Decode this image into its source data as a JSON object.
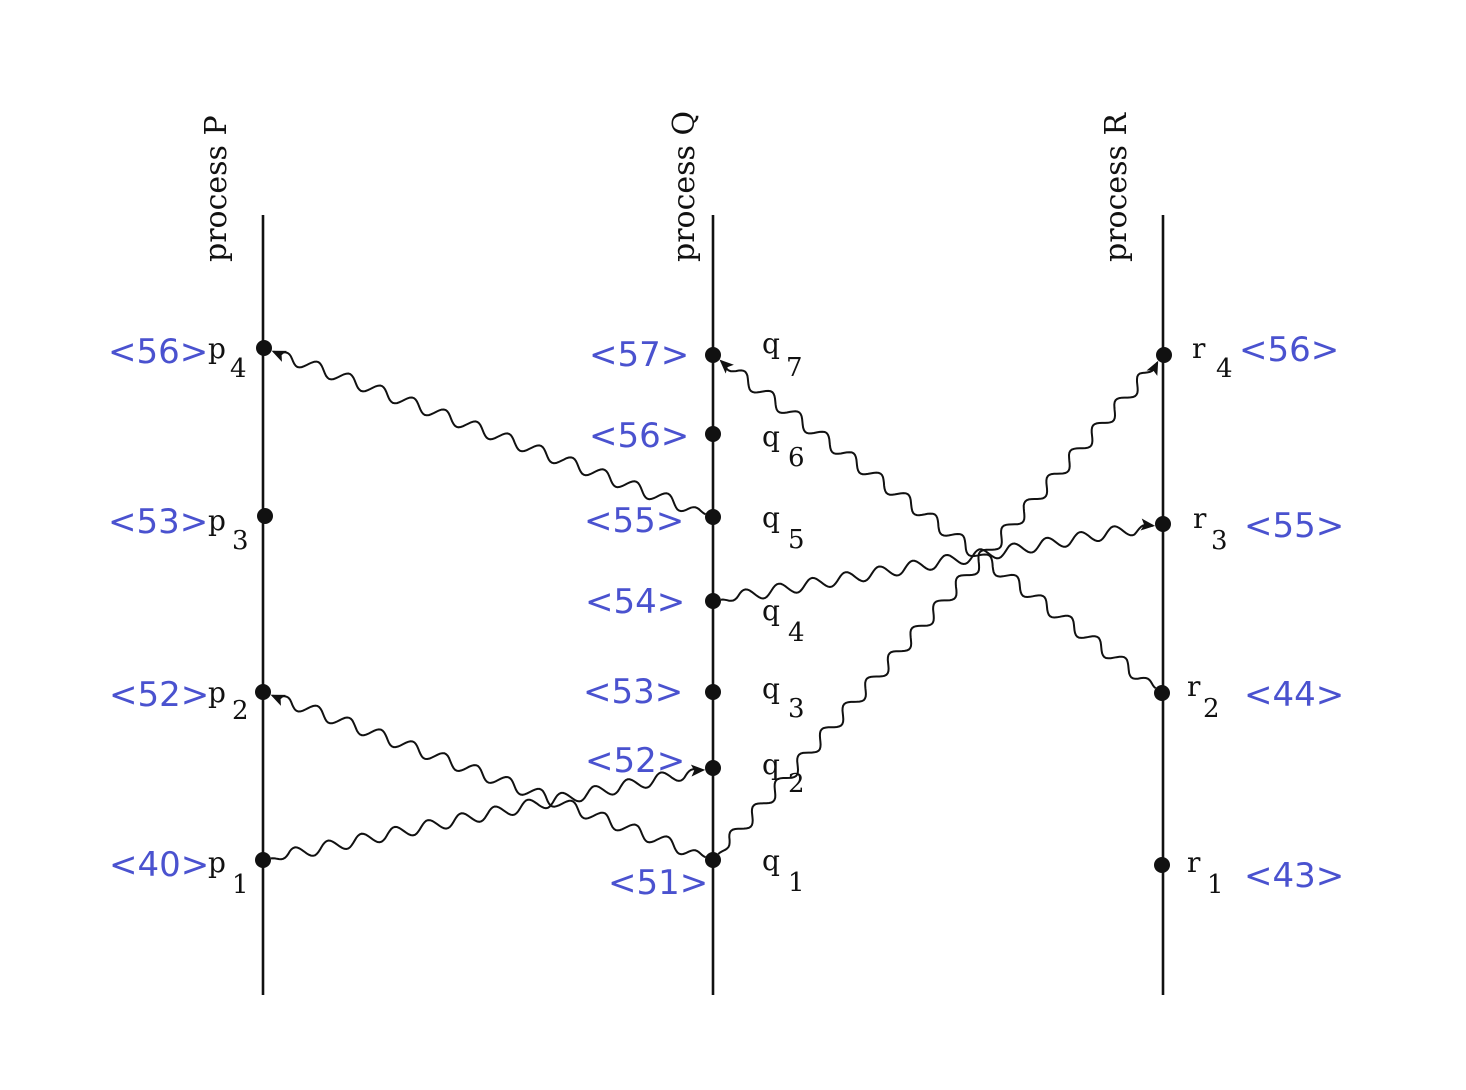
{
  "processes": [
    {
      "id": "P",
      "label": "process P"
    },
    {
      "id": "Q",
      "label": "process Q"
    },
    {
      "id": "R",
      "label": "process R"
    }
  ],
  "events": [
    {
      "id": "p1",
      "process": "P",
      "name": "p",
      "sub": "1",
      "timestamp": "<40>"
    },
    {
      "id": "p2",
      "process": "P",
      "name": "p",
      "sub": "2",
      "timestamp": "<52>"
    },
    {
      "id": "p3",
      "process": "P",
      "name": "p",
      "sub": "3",
      "timestamp": "<53>"
    },
    {
      "id": "p4",
      "process": "P",
      "name": "p",
      "sub": "4",
      "timestamp": "<56>"
    },
    {
      "id": "q1",
      "process": "Q",
      "name": "q",
      "sub": "1",
      "timestamp": "<51>"
    },
    {
      "id": "q2",
      "process": "Q",
      "name": "q",
      "sub": "2",
      "timestamp": "<52>"
    },
    {
      "id": "q3",
      "process": "Q",
      "name": "q",
      "sub": "3",
      "timestamp": "<53>"
    },
    {
      "id": "q4",
      "process": "Q",
      "name": "q",
      "sub": "4",
      "timestamp": "<54>"
    },
    {
      "id": "q5",
      "process": "Q",
      "name": "q",
      "sub": "5",
      "timestamp": "<55>"
    },
    {
      "id": "q6",
      "process": "Q",
      "name": "q",
      "sub": "6",
      "timestamp": "<56>"
    },
    {
      "id": "q7",
      "process": "Q",
      "name": "q",
      "sub": "7",
      "timestamp": "<57>"
    },
    {
      "id": "r1",
      "process": "R",
      "name": "r",
      "sub": "1",
      "timestamp": "<43>"
    },
    {
      "id": "r2",
      "process": "R",
      "name": "r",
      "sub": "2",
      "timestamp": "<44>"
    },
    {
      "id": "r3",
      "process": "R",
      "name": "r",
      "sub": "3",
      "timestamp": "<55>"
    },
    {
      "id": "r4",
      "process": "R",
      "name": "r",
      "sub": "4",
      "timestamp": "<56>"
    }
  ],
  "messages": [
    {
      "from": "p1",
      "to": "q2"
    },
    {
      "from": "q1",
      "to": "p2"
    },
    {
      "from": "q1",
      "to": "r4"
    },
    {
      "from": "q4",
      "to": "r3"
    },
    {
      "from": "q5",
      "to": "p4"
    },
    {
      "from": "r2",
      "to": "q7"
    }
  ],
  "colors": {
    "timestamp": "#4a52cf",
    "ink": "#111111"
  }
}
